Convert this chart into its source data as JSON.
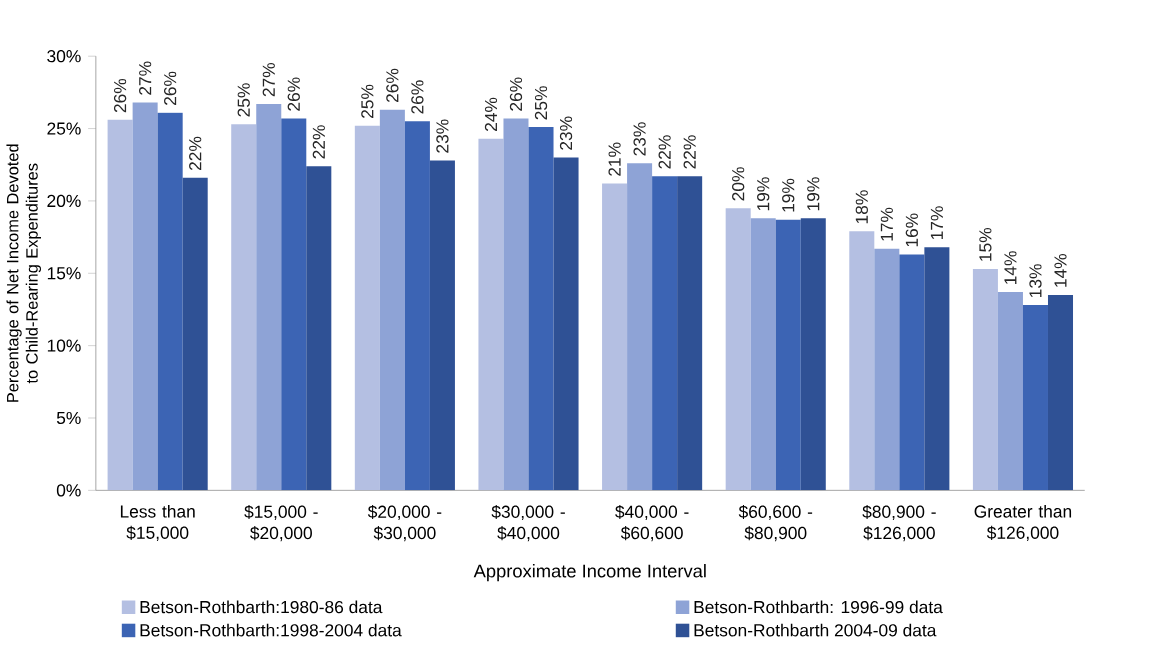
{
  "chart_data": {
    "type": "bar",
    "xlabel": "Approximate Income Interval",
    "ylabel": "Percentage of Net Income Devoted to Child-Rearing Expenditures",
    "categories": [
      "Less than $15,000",
      "$15,000 - $20,000",
      "$20,000 - $30,000",
      "$30,000 - $40,000",
      "$40,000 - $60,600",
      "$60,600 - $80,900",
      "$80,900 - $126,000",
      "Greater than $126,000"
    ],
    "series": [
      {
        "name": "Betson-Rothbarth:1980-86 data",
        "color": "#b4bfe2",
        "values": [
          25.6,
          25.3,
          25.2,
          24.3,
          21.2,
          19.5,
          17.9,
          15.3
        ],
        "value_labels": [
          "26%",
          "25%",
          "25%",
          "24%",
          "21%",
          "20%",
          "18%",
          "15%"
        ]
      },
      {
        "name": "Betson-Rothbarth: 1996-99 data",
        "color": "#8ea3d6",
        "values": [
          26.8,
          26.7,
          26.3,
          25.7,
          22.6,
          18.8,
          16.7,
          13.7
        ],
        "value_labels": [
          "27%",
          "27%",
          "26%",
          "26%",
          "23%",
          "19%",
          "17%",
          "14%"
        ]
      },
      {
        "name": "Betson-Rothbarth:1998-2004 data",
        "color": "#3c64b4",
        "values": [
          26.1,
          25.7,
          25.5,
          25.1,
          21.7,
          18.7,
          16.3,
          12.8
        ],
        "value_labels": [
          "26%",
          "26%",
          "26%",
          "25%",
          "22%",
          "19%",
          "16%",
          "13%"
        ]
      },
      {
        "name": "Betson-Rothbarth 2004-09 data",
        "color": "#2f5195",
        "values": [
          21.6,
          22.4,
          22.8,
          23.0,
          21.7,
          18.8,
          16.8,
          13.5
        ],
        "value_labels": [
          "22%",
          "22%",
          "23%",
          "23%",
          "22%",
          "19%",
          "17%",
          "14%"
        ]
      }
    ],
    "ylim": [
      0,
      30
    ],
    "yticks": [
      {
        "value": 0,
        "label": "0%"
      },
      {
        "value": 5,
        "label": "5%"
      },
      {
        "value": 10,
        "label": "10%"
      },
      {
        "value": 15,
        "label": "15%"
      },
      {
        "value": 20,
        "label": "20%"
      },
      {
        "value": 25,
        "label": "25%"
      },
      {
        "value": 30,
        "label": "30%"
      }
    ],
    "grid": false,
    "legend": "bottom"
  }
}
